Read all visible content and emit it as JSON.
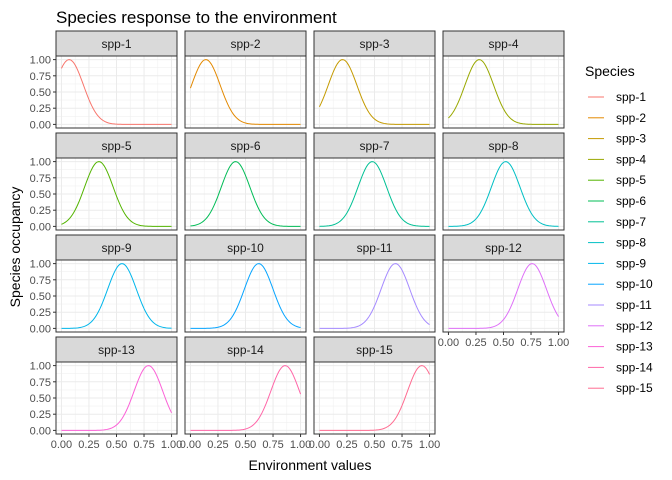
{
  "chart_data": {
    "type": "line",
    "title": "Species response to the environment",
    "xlabel": "Environment values",
    "ylabel": "Species occupancy",
    "xlim": [
      0,
      1
    ],
    "ylim": [
      0,
      1
    ],
    "x_ticks": [
      "0.00",
      "0.25",
      "0.50",
      "0.75",
      "1.00"
    ],
    "y_ticks": [
      "0.00",
      "0.25",
      "0.50",
      "0.75",
      "1.00"
    ],
    "grid": true,
    "legend": {
      "title": "Species",
      "position": "right"
    },
    "series": [
      {
        "name": "spp-1",
        "color": "#F8766D",
        "optimum": 0.07,
        "sd": 0.13
      },
      {
        "name": "spp-2",
        "color": "#E38900",
        "optimum": 0.14,
        "sd": 0.13
      },
      {
        "name": "spp-3",
        "color": "#C49A00",
        "optimum": 0.21,
        "sd": 0.13
      },
      {
        "name": "spp-4",
        "color": "#99A800",
        "optimum": 0.28,
        "sd": 0.13
      },
      {
        "name": "spp-5",
        "color": "#53B400",
        "optimum": 0.34,
        "sd": 0.13
      },
      {
        "name": "spp-6",
        "color": "#00BC56",
        "optimum": 0.41,
        "sd": 0.13
      },
      {
        "name": "spp-7",
        "color": "#00C094",
        "optimum": 0.48,
        "sd": 0.13
      },
      {
        "name": "spp-8",
        "color": "#00BFC4",
        "optimum": 0.52,
        "sd": 0.13
      },
      {
        "name": "spp-9",
        "color": "#00B6EB",
        "optimum": 0.55,
        "sd": 0.13
      },
      {
        "name": "spp-10",
        "color": "#06A4FF",
        "optimum": 0.62,
        "sd": 0.13
      },
      {
        "name": "spp-11",
        "color": "#A58AFF",
        "optimum": 0.69,
        "sd": 0.13
      },
      {
        "name": "spp-12",
        "color": "#DF70F8",
        "optimum": 0.76,
        "sd": 0.13
      },
      {
        "name": "spp-13",
        "color": "#FB61D7",
        "optimum": 0.79,
        "sd": 0.13
      },
      {
        "name": "spp-14",
        "color": "#FF66A8",
        "optimum": 0.86,
        "sd": 0.13
      },
      {
        "name": "spp-15",
        "color": "#FF6C91",
        "optimum": 0.93,
        "sd": 0.13
      }
    ],
    "x_axis_shown_under": [
      "spp-12",
      "spp-13",
      "spp-14",
      "spp-15"
    ]
  }
}
